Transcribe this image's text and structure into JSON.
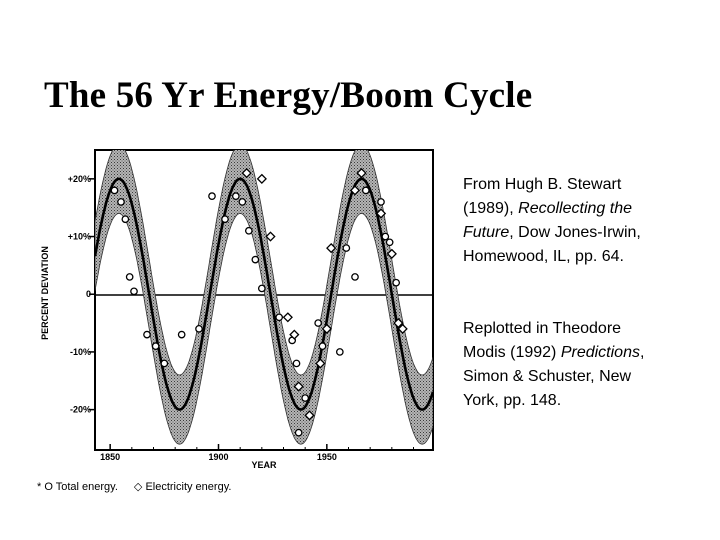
{
  "slide": {
    "title": "The 56 Yr Energy/Boom Cycle"
  },
  "reference1": {
    "line1": "From Hugh B. Stewart",
    "line2_a": "(1989), ",
    "line2_b": "Recollecting the",
    "line3_a": "Future",
    "line3_b": ", Dow Jones-Irwin,",
    "line4": "Homewood, IL, pp. 64."
  },
  "reference2": {
    "line1": "Replotted in Theodore",
    "line2_a": "Modis (1992) ",
    "line2_b": "Predictions",
    "line2_c": ",",
    "line3": "Simon & Schuster, New",
    "line4": "York, pp. 148."
  },
  "legend": {
    "total_label": "* O Total energy.",
    "electricity_label": "◇ Electricity energy."
  },
  "colors": {
    "band": "#8a8a8a",
    "curve": "#000000",
    "frame": "#000000"
  },
  "chart_data": {
    "type": "scatter",
    "xlabel": "YEAR",
    "ylabel": "PERCENT DEVIATION",
    "xlim": [
      1843,
      1999
    ],
    "ylim": [
      -27,
      25
    ],
    "x_ticks": [
      1850,
      1900,
      1950
    ],
    "x_tick_labels": [
      "1850",
      "1900",
      "1950"
    ],
    "y_ticks": [
      20,
      10,
      0,
      -10,
      -20
    ],
    "y_tick_labels": [
      "+20%",
      "+10%",
      "0",
      "-10%",
      "-20%"
    ],
    "fit_curve": {
      "form": "sinusoid",
      "period_years": 56,
      "amplitude_percent": 20,
      "peak_years": [
        1854,
        1910,
        1966
      ],
      "trough_years": [
        1882,
        1938
      ],
      "band_half_width_percent": 6
    },
    "series": [
      {
        "name": "Total energy",
        "marker": "circle",
        "points": [
          [
            1852,
            18
          ],
          [
            1855,
            16
          ],
          [
            1857,
            13
          ],
          [
            1859,
            3
          ],
          [
            1861,
            0.5
          ],
          [
            1867,
            -7
          ],
          [
            1871,
            -9
          ],
          [
            1875,
            -12
          ],
          [
            1883,
            -7
          ],
          [
            1891,
            -6
          ],
          [
            1897,
            17
          ],
          [
            1903,
            13
          ],
          [
            1908,
            17
          ],
          [
            1911,
            16
          ],
          [
            1914,
            11
          ],
          [
            1917,
            6
          ],
          [
            1920,
            1
          ],
          [
            1928,
            -4
          ],
          [
            1934,
            -8
          ],
          [
            1936,
            -12
          ],
          [
            1937,
            -24
          ],
          [
            1940,
            -18
          ],
          [
            1946,
            -5
          ],
          [
            1948,
            -9
          ],
          [
            1956,
            -10
          ],
          [
            1959,
            8
          ],
          [
            1963,
            3
          ],
          [
            1968,
            18
          ],
          [
            1975,
            16
          ],
          [
            1977,
            10
          ],
          [
            1979,
            9
          ],
          [
            1982,
            2
          ]
        ]
      },
      {
        "name": "Electricity energy",
        "marker": "diamond",
        "points": [
          [
            1913,
            21
          ],
          [
            1920,
            20
          ],
          [
            1924,
            10
          ],
          [
            1932,
            -4
          ],
          [
            1935,
            -7
          ],
          [
            1937,
            -16
          ],
          [
            1942,
            -21
          ],
          [
            1947,
            -12
          ],
          [
            1950,
            -6
          ],
          [
            1952,
            8
          ],
          [
            1963,
            18
          ],
          [
            1966,
            21
          ],
          [
            1975,
            14
          ],
          [
            1980,
            7
          ],
          [
            1983,
            -5
          ],
          [
            1985,
            -6
          ]
        ]
      }
    ]
  }
}
